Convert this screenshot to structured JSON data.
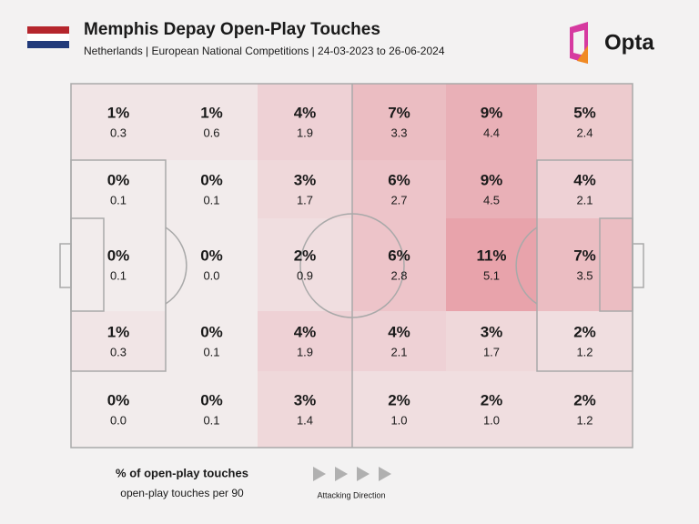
{
  "header": {
    "title": "Memphis Depay Open-Play Touches",
    "subtitle": "Netherlands | European National Competitions | 24-03-2023 to 26-06-2024",
    "brand": "Opta"
  },
  "grid": {
    "rows": [
      [
        {
          "pct": "1%",
          "per90": "0.3"
        },
        {
          "pct": "1%",
          "per90": "0.6"
        },
        {
          "pct": "4%",
          "per90": "1.9"
        },
        {
          "pct": "7%",
          "per90": "3.3"
        },
        {
          "pct": "9%",
          "per90": "4.4"
        },
        {
          "pct": "5%",
          "per90": "2.4"
        }
      ],
      [
        {
          "pct": "0%",
          "per90": "0.1"
        },
        {
          "pct": "0%",
          "per90": "0.1"
        },
        {
          "pct": "3%",
          "per90": "1.7"
        },
        {
          "pct": "6%",
          "per90": "2.7"
        },
        {
          "pct": "9%",
          "per90": "4.5"
        },
        {
          "pct": "4%",
          "per90": "2.1"
        }
      ],
      [
        {
          "pct": "0%",
          "per90": "0.1"
        },
        {
          "pct": "0%",
          "per90": "0.0"
        },
        {
          "pct": "2%",
          "per90": "0.9"
        },
        {
          "pct": "6%",
          "per90": "2.8"
        },
        {
          "pct": "11%",
          "per90": "5.1"
        },
        {
          "pct": "7%",
          "per90": "3.5"
        }
      ],
      [
        {
          "pct": "1%",
          "per90": "0.3"
        },
        {
          "pct": "0%",
          "per90": "0.1"
        },
        {
          "pct": "4%",
          "per90": "1.9"
        },
        {
          "pct": "4%",
          "per90": "2.1"
        },
        {
          "pct": "3%",
          "per90": "1.7"
        },
        {
          "pct": "2%",
          "per90": "1.2"
        }
      ],
      [
        {
          "pct": "0%",
          "per90": "0.0"
        },
        {
          "pct": "0%",
          "per90": "0.1"
        },
        {
          "pct": "3%",
          "per90": "1.4"
        },
        {
          "pct": "2%",
          "per90": "1.0"
        },
        {
          "pct": "2%",
          "per90": "1.0"
        },
        {
          "pct": "2%",
          "per90": "1.2"
        }
      ]
    ]
  },
  "legend": {
    "pct_label": "% of open-play touches",
    "per90_label": "open-play touches per 90",
    "direction": "Attacking Direction"
  }
}
